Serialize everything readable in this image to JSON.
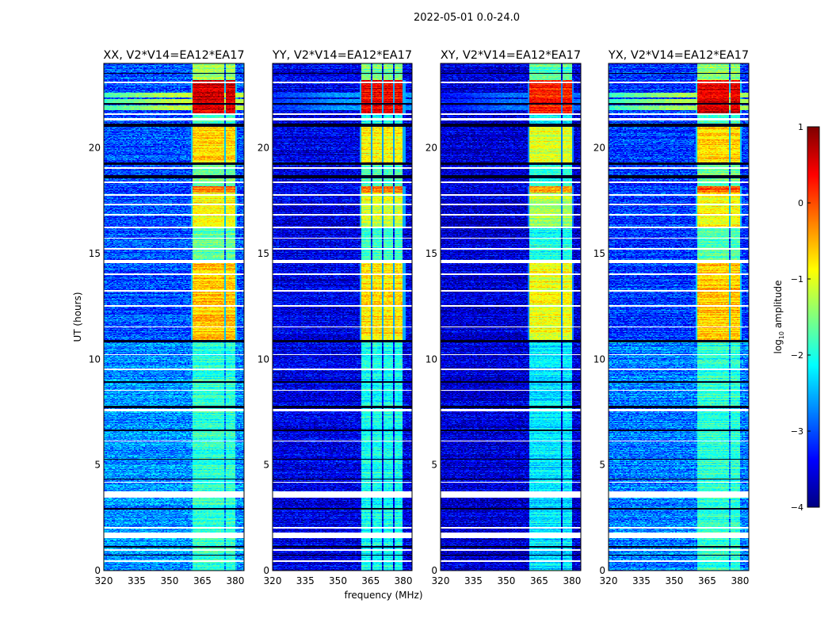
{
  "chart_data": {
    "type": "heatmap",
    "title": "2022-05-01 0.0-24.0",
    "xlabel": "frequency (MHz)",
    "ylabel": "UT (hours)",
    "xlim": [
      320,
      384
    ],
    "ylim": [
      0,
      24
    ],
    "xticks": [
      320,
      335,
      350,
      365,
      380
    ],
    "yticks": [
      0,
      5,
      10,
      15,
      20
    ],
    "colorbar": {
      "label_main": "log",
      "label_sub": "10",
      "label_rest": " amplitude",
      "range": [
        -4,
        1
      ],
      "ticks": [
        1,
        0,
        -1,
        -2,
        -3,
        -4
      ],
      "tick_labels": [
        "1",
        "0",
        "−1",
        "−2",
        "−3",
        "−4"
      ],
      "colormap": "jet"
    },
    "panels": [
      {
        "title": "XX, V2*V14=EA12*EA17",
        "background_log_amp": -3.0,
        "rfi_offset": 0.0,
        "broadband_log_amp": -1.2
      },
      {
        "title": "YY, V2*V14=EA12*EA17",
        "background_log_amp": -3.5,
        "rfi_offset": -0.15,
        "broadband_log_amp": -2.6
      },
      {
        "title": "XY, V2*V14=EA12*EA17",
        "background_log_amp": -3.6,
        "rfi_offset": -0.35,
        "broadband_log_amp": -2.8
      },
      {
        "title": "YX, V2*V14=EA12*EA17",
        "background_log_amp": -3.1,
        "rfi_offset": 0.0,
        "broadband_log_amp": -1.3
      }
    ],
    "rfi_subbands_mhz": [
      [
        360.5,
        365.3
      ],
      [
        365.8,
        370.3
      ],
      [
        370.8,
        375.3
      ],
      [
        375.8,
        380.0
      ]
    ],
    "rfi_segments": [
      {
        "t": [
          0.0,
          10.9
        ],
        "log_amp": -1.9
      },
      {
        "t": [
          10.9,
          14.6
        ],
        "log_amp": -0.6
      },
      {
        "t": [
          14.6,
          16.2
        ],
        "log_amp": -1.7
      },
      {
        "t": [
          16.2,
          17.9
        ],
        "log_amp": -0.9
      },
      {
        "t": [
          17.9,
          18.2
        ],
        "log_amp": -0.1
      },
      {
        "t": [
          18.2,
          19.2
        ],
        "log_amp": -1.6
      },
      {
        "t": [
          19.2,
          21.1
        ],
        "log_amp": -0.7
      },
      {
        "t": [
          21.1,
          21.6
        ],
        "log_amp": -1.8
      },
      {
        "t": [
          21.6,
          23.2
        ],
        "log_amp": 0.6
      },
      {
        "t": [
          23.2,
          24.0
        ],
        "log_amp": -1.4
      }
    ],
    "flagged_hours": [
      [
        0.42,
        0.5
      ],
      [
        0.95,
        1.02
      ],
      [
        1.55,
        1.8
      ],
      [
        2.0,
        2.06
      ],
      [
        3.45,
        3.75
      ],
      [
        4.15,
        4.2
      ],
      [
        6.1,
        6.15
      ],
      [
        7.55,
        7.65
      ],
      [
        8.5,
        8.55
      ],
      [
        9.5,
        9.55
      ],
      [
        10.2,
        10.25
      ],
      [
        11.5,
        11.56
      ],
      [
        12.5,
        12.56
      ],
      [
        13.2,
        13.26
      ],
      [
        14.0,
        14.06
      ],
      [
        14.55,
        14.7
      ],
      [
        15.2,
        15.26
      ],
      [
        15.7,
        15.75
      ],
      [
        16.2,
        16.27
      ],
      [
        16.8,
        16.86
      ],
      [
        17.3,
        17.36
      ],
      [
        17.75,
        17.82
      ],
      [
        18.35,
        18.42
      ],
      [
        19.0,
        19.08
      ],
      [
        21.3,
        21.4
      ],
      [
        21.55,
        21.62
      ],
      [
        23.05,
        23.12
      ]
    ],
    "dropout_hours": [
      [
        0.7,
        0.76
      ],
      [
        1.1,
        1.16
      ],
      [
        2.9,
        2.96
      ],
      [
        4.3,
        4.36
      ],
      [
        5.25,
        5.3
      ],
      [
        6.6,
        6.66
      ],
      [
        7.7,
        7.8
      ],
      [
        8.9,
        8.95
      ],
      [
        10.8,
        10.9
      ],
      [
        18.55,
        18.7
      ],
      [
        19.2,
        19.3
      ],
      [
        21.0,
        21.15
      ],
      [
        22.05,
        22.12
      ],
      [
        23.5,
        23.56
      ]
    ]
  }
}
